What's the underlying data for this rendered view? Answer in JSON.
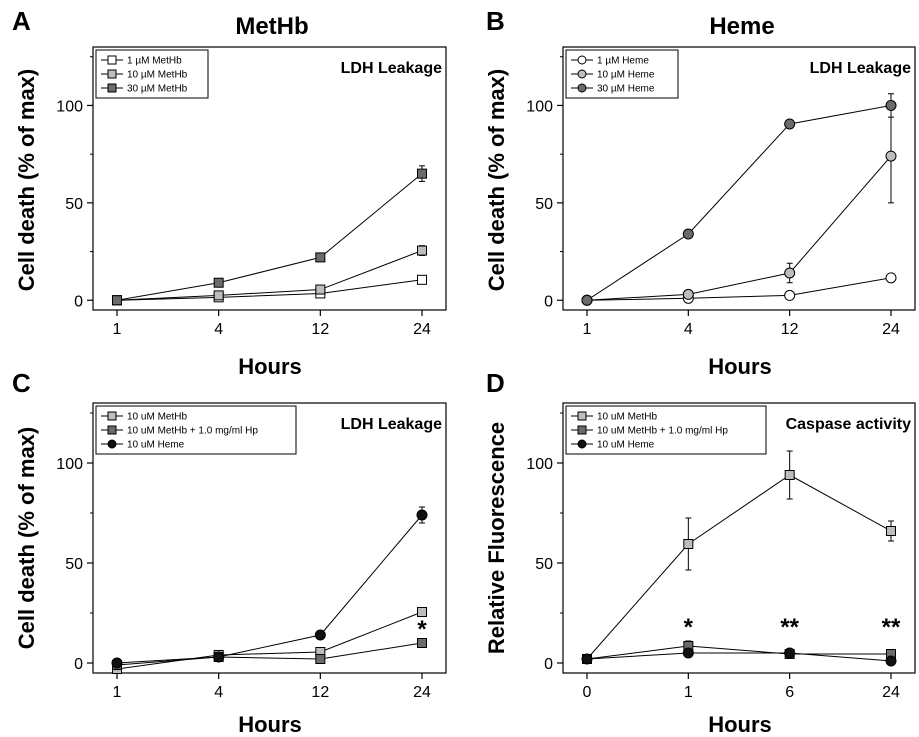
{
  "chart_data": [
    {
      "type": "line",
      "letter": "A",
      "title": "MetHb",
      "corner_label": "LDH Leakage",
      "xlabel": "Hours",
      "ylabel": "Cell death (% of max)",
      "categories": [
        "1",
        "4",
        "12",
        "24"
      ],
      "ylim": [
        -5,
        130
      ],
      "yticks": [
        0,
        50,
        100
      ],
      "grid": false,
      "legend_position": "top-left",
      "series": [
        {
          "name": "1 µM MetHb",
          "marker": "square",
          "fill": "#ffffff",
          "values": [
            0,
            1.5,
            3.5,
            10.5
          ],
          "errors": [
            0,
            0.8,
            0.8,
            1.5
          ]
        },
        {
          "name": "10 µM MetHb",
          "marker": "square",
          "fill": "#bdbdbd",
          "values": [
            0,
            2.5,
            5.5,
            25.5
          ],
          "errors": [
            0,
            1,
            2,
            2.5
          ]
        },
        {
          "name": "30 µM MetHb",
          "marker": "square",
          "fill": "#6b6b6b",
          "values": [
            0,
            9,
            22,
            65
          ],
          "errors": [
            0,
            1,
            1,
            4
          ]
        }
      ],
      "annotations": []
    },
    {
      "type": "line",
      "letter": "B",
      "title": "Heme",
      "corner_label": "LDH Leakage",
      "xlabel": "Hours",
      "ylabel": "Cell death (% of max)",
      "categories": [
        "1",
        "4",
        "12",
        "24"
      ],
      "ylim": [
        -5,
        130
      ],
      "yticks": [
        0,
        50,
        100
      ],
      "grid": false,
      "legend_position": "top-left",
      "series": [
        {
          "name": "1 µM Heme",
          "marker": "circle",
          "fill": "#ffffff",
          "values": [
            0,
            1,
            2.5,
            11.5
          ],
          "errors": [
            0,
            0.5,
            1,
            1.5
          ]
        },
        {
          "name": "10 µM Heme",
          "marker": "circle",
          "fill": "#bdbdbd",
          "values": [
            0,
            3,
            14,
            74
          ],
          "errors": [
            0,
            1,
            5,
            24
          ]
        },
        {
          "name": "30 µM Heme",
          "marker": "circle",
          "fill": "#6b6b6b",
          "values": [
            0,
            34,
            90.5,
            100
          ],
          "errors": [
            0,
            1,
            1,
            6
          ]
        }
      ],
      "annotations": []
    },
    {
      "type": "line",
      "letter": "C",
      "title": "",
      "corner_label": "LDH Leakage",
      "xlabel": "Hours",
      "ylabel": "Cell death (% of max)",
      "categories": [
        "1",
        "4",
        "12",
        "24"
      ],
      "ylim": [
        -5,
        130
      ],
      "yticks": [
        0,
        50,
        100
      ],
      "grid": false,
      "legend_position": "top-left",
      "series": [
        {
          "name": "10 uM MetHb",
          "marker": "square",
          "fill": "#bdbdbd",
          "values": [
            -3,
            4,
            5.5,
            25.5
          ],
          "errors": [
            0,
            0,
            0,
            0
          ]
        },
        {
          "name": "10 uM MetHb + 1.0 mg/ml Hp",
          "marker": "square",
          "fill": "#6b6b6b",
          "values": [
            -1,
            3,
            2,
            10
          ],
          "errors": [
            0,
            0,
            0,
            2
          ]
        },
        {
          "name": "10 uM Heme",
          "marker": "circle",
          "fill": "#111111",
          "values": [
            0,
            3,
            14,
            74
          ],
          "errors": [
            0,
            0,
            0,
            4
          ]
        }
      ],
      "annotations": [
        {
          "text": "*",
          "category_index": 3,
          "y": 17
        }
      ]
    },
    {
      "type": "line",
      "letter": "D",
      "title": "",
      "corner_label": "Caspase activity",
      "xlabel": "Hours",
      "ylabel": "Relative Fluorescence",
      "categories": [
        "0",
        "1",
        "6",
        "24"
      ],
      "ylim": [
        -5,
        130
      ],
      "yticks": [
        0,
        50,
        100
      ],
      "grid": false,
      "legend_position": "top-left",
      "series": [
        {
          "name": "10 uM MetHb",
          "marker": "square",
          "fill": "#bdbdbd",
          "values": [
            2,
            59.5,
            94,
            66
          ],
          "errors": [
            0,
            13,
            12,
            5
          ]
        },
        {
          "name": "10 uM MetHb + 1.0 mg/ml Hp",
          "marker": "square",
          "fill": "#6b6b6b",
          "values": [
            2,
            8.5,
            4.5,
            4.5
          ],
          "errors": [
            0,
            2.5,
            1,
            0
          ]
        },
        {
          "name": "10 uM Heme",
          "marker": "circle",
          "fill": "#111111",
          "values": [
            2,
            5,
            5,
            1
          ],
          "errors": [
            0,
            1,
            1,
            0
          ]
        }
      ],
      "annotations": [
        {
          "text": "*",
          "category_index": 1,
          "y": 18
        },
        {
          "text": "**",
          "category_index": 2,
          "y": 18
        },
        {
          "text": "**",
          "category_index": 3,
          "y": 18
        }
      ]
    }
  ]
}
